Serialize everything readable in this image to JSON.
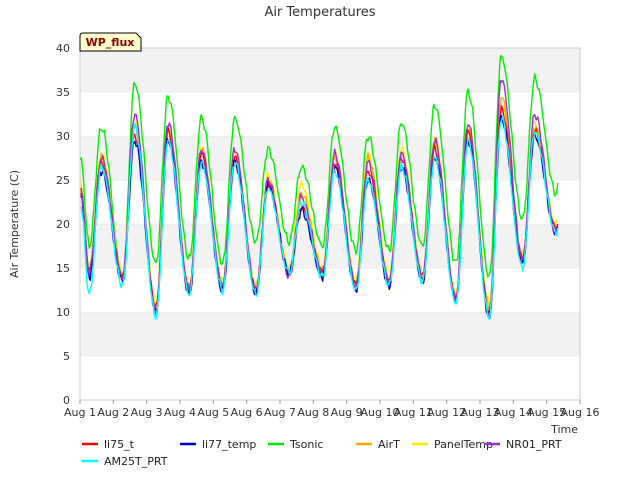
{
  "chart_data": {
    "type": "line",
    "title": "Air Temperatures",
    "xlabel": "Time",
    "ylabel": "Air Temperature (C)",
    "badge": "WP_flux",
    "xlim": [
      "Aug 1",
      "Aug 16"
    ],
    "ylim": [
      0,
      40
    ],
    "x_ticks": [
      "Aug 1",
      "Aug 2",
      "Aug 3",
      "Aug 4",
      "Aug 5",
      "Aug 6",
      "Aug 7",
      "Aug 8",
      "Aug 9",
      "Aug 10",
      "Aug 11",
      "Aug 12",
      "Aug 13",
      "Aug 14",
      "Aug 15",
      "Aug 16"
    ],
    "y_ticks": [
      0,
      5,
      10,
      15,
      20,
      25,
      30,
      35,
      40
    ],
    "grid": "horizontal bands",
    "legend_position": "bottom",
    "daily_extremes_note_free": true,
    "series": [
      {
        "name": "li75_t",
        "color": "#ff0000",
        "daily_min": [
          14.5,
          14.0,
          10.5,
          12.5,
          13.0,
          12.5,
          14.5,
          14.5,
          13.0,
          13.5,
          14.0,
          11.5,
          10.0,
          16.0,
          19.5
        ],
        "daily_max": [
          27.0,
          30.0,
          30.5,
          28.0,
          27.5,
          24.5,
          22.0,
          27.0,
          26.0,
          27.5,
          28.5,
          30.5,
          33.0,
          30.5,
          30.5
        ]
      },
      {
        "name": "li77_temp",
        "color": "#0000cc",
        "daily_min": [
          14.0,
          13.5,
          10.0,
          12.0,
          12.5,
          12.0,
          14.5,
          14.0,
          12.5,
          13.0,
          13.5,
          11.5,
          9.5,
          15.5,
          19.0
        ],
        "daily_max": [
          26.0,
          29.5,
          29.5,
          27.0,
          27.0,
          24.5,
          21.5,
          26.5,
          25.0,
          26.5,
          27.5,
          29.5,
          32.0,
          30.0,
          30.0
        ]
      },
      {
        "name": "Tsonic",
        "color": "#00ee00",
        "daily_min": [
          17.5,
          14.0,
          15.5,
          16.0,
          15.5,
          18.0,
          18.0,
          17.5,
          17.0,
          17.0,
          17.5,
          15.5,
          14.0,
          20.5,
          23.5
        ],
        "daily_max": [
          31.0,
          36.0,
          34.5,
          32.0,
          32.0,
          28.5,
          26.5,
          31.0,
          30.0,
          31.5,
          33.5,
          35.0,
          39.0,
          36.5,
          36.0
        ]
      },
      {
        "name": "AirT",
        "color": "#ffa500",
        "daily_min": [
          14.5,
          14.0,
          10.5,
          12.5,
          13.0,
          12.5,
          14.5,
          14.5,
          13.0,
          13.5,
          14.0,
          11.5,
          10.5,
          16.0,
          19.5
        ],
        "daily_max": [
          27.5,
          31.0,
          30.5,
          28.5,
          27.5,
          25.0,
          23.5,
          27.5,
          27.5,
          28.0,
          29.5,
          30.5,
          34.5,
          31.0,
          31.0
        ]
      },
      {
        "name": "PanelTemp",
        "color": "#ffee00",
        "daily_min": [
          15.0,
          14.5,
          11.0,
          13.0,
          13.5,
          13.0,
          15.0,
          15.0,
          13.5,
          14.0,
          14.5,
          12.0,
          11.0,
          16.5,
          20.0
        ],
        "daily_max": [
          28.0,
          31.5,
          31.0,
          28.5,
          28.0,
          25.5,
          24.5,
          28.0,
          28.0,
          28.5,
          29.5,
          31.0,
          33.5,
          31.5,
          31.0
        ]
      },
      {
        "name": "NR01_PRT",
        "color": "#9932cc",
        "daily_min": [
          14.5,
          14.0,
          10.0,
          12.5,
          13.0,
          12.5,
          14.0,
          14.5,
          13.0,
          13.5,
          14.0,
          11.5,
          9.5,
          16.0,
          19.0
        ],
        "daily_max": [
          27.5,
          32.5,
          31.5,
          28.5,
          28.5,
          25.0,
          23.0,
          28.0,
          27.0,
          28.0,
          29.5,
          31.5,
          36.5,
          32.5,
          31.0
        ]
      },
      {
        "name": "AM25T_PRT",
        "color": "#00ffff",
        "daily_min": [
          12.0,
          13.0,
          9.5,
          12.0,
          12.5,
          12.0,
          14.5,
          14.0,
          12.5,
          13.0,
          13.5,
          11.0,
          9.5,
          15.0,
          19.0
        ],
        "daily_max": [
          26.5,
          31.0,
          29.5,
          27.0,
          27.0,
          24.0,
          22.5,
          26.0,
          25.0,
          26.5,
          27.5,
          29.5,
          32.0,
          30.5,
          30.5
        ]
      }
    ]
  }
}
